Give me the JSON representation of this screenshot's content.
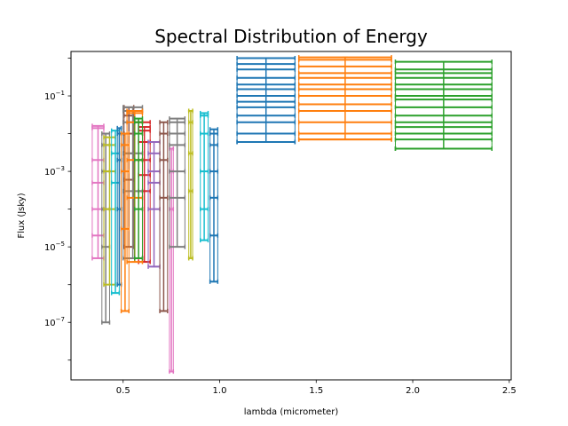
{
  "chart_data": {
    "type": "scatter",
    "style": "errorbar",
    "title": "Spectral Distribution of Energy",
    "xlabel": "lambda (micrometer)",
    "ylabel": "Flux (Jsky)",
    "xlim": [
      0.23,
      2.51
    ],
    "ylim": [
      3e-09,
      1.5
    ],
    "yscale": "log",
    "grid": false,
    "x_ticks": [
      {
        "value": 0.5,
        "label": "0.5"
      },
      {
        "value": 1.0,
        "label": "1.0"
      },
      {
        "value": 1.5,
        "label": "1.5"
      },
      {
        "value": 2.0,
        "label": "2.0"
      },
      {
        "value": 2.5,
        "label": "2.5"
      }
    ],
    "y_ticks": [
      {
        "value": 1e-07,
        "base": "10",
        "exp": "−7"
      },
      {
        "value": 1e-05,
        "base": "10",
        "exp": "−5"
      },
      {
        "value": 0.001,
        "base": "10",
        "exp": "−3"
      },
      {
        "value": 0.1,
        "base": "10",
        "exp": "−1"
      }
    ],
    "series": [
      {
        "color": "#d62728",
        "points": [
          {
            "x": 0.61,
            "xerr": 0.03,
            "y": [
              0.0003,
              0.0008,
              0.002,
              0.006,
              0.012,
              0.02
            ],
            "ylo": 4e-06,
            "yhi": 0.015
          }
        ]
      },
      {
        "color": "#9467bd",
        "points": [
          {
            "x": 0.66,
            "xerr": 0.03,
            "y": [
              0.0001,
              0.0005,
              0.001,
              0.003
            ],
            "ylo": 3e-06,
            "yhi": 0.006
          }
        ]
      },
      {
        "color": "#8c564b",
        "points": [
          {
            "x": 0.53,
            "xerr": 0.025,
            "y": [
              0.0006,
              0.003,
              0.01,
              0.03
            ],
            "ylo": 1e-05,
            "yhi": 0.05
          },
          {
            "x": 0.71,
            "xerr": 0.02,
            "y": [
              0.0002,
              0.002,
              0.01
            ],
            "ylo": 2e-07,
            "yhi": 0.02
          }
        ]
      },
      {
        "color": "#e377c2",
        "points": [
          {
            "x": 0.37,
            "xerr": 0.03,
            "y": [
              2e-05,
              0.0001,
              0.0005,
              0.002,
              0.014
            ],
            "ylo": 5e-06,
            "yhi": 0.016
          },
          {
            "x": 0.75,
            "xerr": 0.01,
            "y": [
              0.0001,
              0.001
            ],
            "ylo": 5e-09,
            "yhi": 0.004
          }
        ]
      },
      {
        "color": "#7f7f7f",
        "points": [
          {
            "x": 0.41,
            "xerr": 0.02,
            "y": [
              1e-05,
              0.0001,
              0.001,
              0.005
            ],
            "ylo": 1e-07,
            "yhi": 0.01
          },
          {
            "x": 0.55,
            "xerr": 0.05,
            "y": [
              0.0003,
              0.003,
              0.02,
              0.04
            ],
            "ylo": 5e-06,
            "yhi": 0.05
          },
          {
            "x": 0.78,
            "xerr": 0.04,
            "y": [
              0.0002,
              0.001,
              0.005,
              0.01,
              0.02
            ],
            "ylo": 1e-05,
            "yhi": 0.025
          }
        ]
      },
      {
        "color": "#bcbd22",
        "points": [
          {
            "x": 0.43,
            "xerr": 0.03,
            "y": [
              0.0001,
              0.001,
              0.005
            ],
            "ylo": 1e-06,
            "yhi": 0.008
          },
          {
            "x": 0.85,
            "xerr": 0.01,
            "y": [
              0.0003,
              0.003,
              0.02
            ],
            "ylo": 5e-06,
            "yhi": 0.04
          }
        ]
      },
      {
        "color": "#17becf",
        "points": [
          {
            "x": 0.46,
            "xerr": 0.02,
            "y": [
              0.0005,
              0.003
            ],
            "ylo": 6e-07,
            "yhi": 0.012
          },
          {
            "x": 0.92,
            "xerr": 0.02,
            "y": [
              0.0001,
              0.001,
              0.01,
              0.03
            ],
            "ylo": 1.5e-05,
            "yhi": 0.035
          }
        ]
      },
      {
        "color": "#1f77b4",
        "points": [
          {
            "x": 0.48,
            "xerr": 0.01,
            "y": [
              0.0001,
              0.002,
              0.01
            ],
            "ylo": 1e-06,
            "yhi": 0.014
          },
          {
            "x": 0.97,
            "xerr": 0.02,
            "y": [
              2e-05,
              0.0002,
              0.001,
              0.005,
              0.01
            ],
            "ylo": 1.2e-06,
            "yhi": 0.013
          },
          {
            "x": 1.24,
            "xerr": 0.15,
            "y": [
              0.006,
              0.01,
              0.02,
              0.03,
              0.05,
              0.07,
              0.1,
              0.15,
              0.2,
              0.3,
              0.5,
              0.7
            ],
            "ylo": 0.006,
            "yhi": 1.0
          }
        ]
      },
      {
        "color": "#ff7f0e",
        "points": [
          {
            "x": 0.51,
            "xerr": 0.02,
            "y": [
              3e-05,
              0.001,
              0.005
            ],
            "ylo": 2e-07,
            "yhi": 0.01
          },
          {
            "x": 0.56,
            "xerr": 0.04,
            "y": [
              0.0002,
              0.002,
              0.02,
              0.035
            ],
            "ylo": 4e-06,
            "yhi": 0.04
          },
          {
            "x": 1.65,
            "xerr": 0.24,
            "y": [
              0.007,
              0.01,
              0.02,
              0.04,
              0.06,
              0.1,
              0.15,
              0.2,
              0.3,
              0.4,
              0.6,
              0.9
            ],
            "ylo": 0.007,
            "yhi": 1.05
          }
        ]
      },
      {
        "color": "#2ca02c",
        "points": [
          {
            "x": 0.58,
            "xerr": 0.02,
            "y": [
              0.0001,
              0.002,
              0.01,
              0.02
            ],
            "ylo": 5e-06,
            "yhi": 0.025
          },
          {
            "x": 2.16,
            "xerr": 0.25,
            "y": [
              0.004,
              0.007,
              0.01,
              0.015,
              0.02,
              0.03,
              0.05,
              0.08,
              0.1,
              0.15,
              0.2,
              0.3,
              0.4,
              0.5
            ],
            "ylo": 0.004,
            "yhi": 0.8
          }
        ]
      }
    ]
  }
}
